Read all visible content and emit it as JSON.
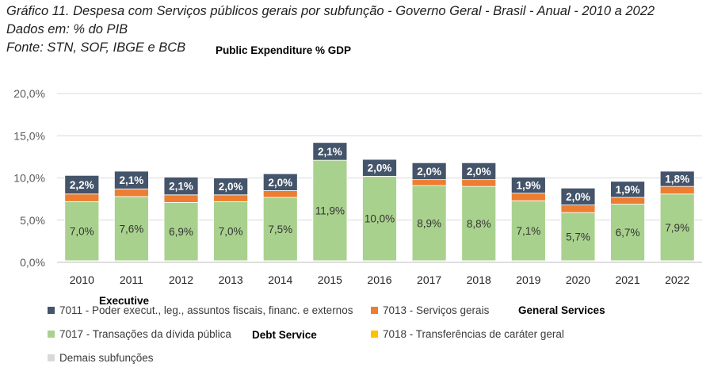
{
  "header": {
    "title": "Gráfico 11. Despesa com Serviços públicos gerais por subfunção - Governo Geral - Brasil - Anual - 2010 a 2022",
    "units": "Dados em: % do PIB",
    "source": "Fonte: STN, SOF, IBGE e BCB",
    "note": "Public Expenditure  % GDP"
  },
  "annotations": {
    "executive": "Executive",
    "general_services": "General Services",
    "debt_service": "Debt Service"
  },
  "chart_data": {
    "type": "bar",
    "stacked": true,
    "title": "Gráfico 11. Despesa com Serviços públicos gerais por subfunção - Governo Geral - Brasil - Anual - 2010 a 2022",
    "ylabel": "% do PIB",
    "ylim": [
      0,
      20
    ],
    "yticks": [
      "0,0%",
      "5,0%",
      "10,0%",
      "15,0%",
      "20,0%"
    ],
    "grid": true,
    "legend_position": "bottom",
    "categories": [
      "2010",
      "2011",
      "2012",
      "2013",
      "2014",
      "2015",
      "2016",
      "2017",
      "2018",
      "2019",
      "2020",
      "2021",
      "2022"
    ],
    "series": [
      {
        "name": "Demais subfunções",
        "color": "#d9d9d9",
        "values": [
          0.1,
          0.1,
          0.1,
          0.1,
          0.1,
          0.1,
          0.1,
          0.1,
          0.1,
          0.1,
          0.1,
          0.1,
          0.1
        ],
        "labels": null
      },
      {
        "name": "7018 - Transferências de caráter geral",
        "color": "#ffc000",
        "values": [
          0.1,
          0.1,
          0.1,
          0.1,
          0.1,
          0.1,
          0.1,
          0.1,
          0.1,
          0.1,
          0.1,
          0.1,
          0.1
        ],
        "labels": null
      },
      {
        "name": "7017 - Transações da dívida pública",
        "color": "#a9d18e",
        "values": [
          7.0,
          7.6,
          6.9,
          7.0,
          7.5,
          11.9,
          10.0,
          8.9,
          8.8,
          7.1,
          5.7,
          6.7,
          7.9
        ],
        "labels": [
          "7,0%",
          "7,6%",
          "6,9%",
          "7,0%",
          "7,5%",
          "11,9%",
          "10,0%",
          "8,9%",
          "8,8%",
          "7,1%",
          "5,7%",
          "6,7%",
          "7,9%"
        ]
      },
      {
        "name": "7013 - Serviços gerais",
        "color": "#ed7d31",
        "values": [
          0.9,
          0.9,
          0.9,
          0.8,
          0.8,
          0.0,
          0.0,
          0.7,
          0.8,
          0.9,
          0.9,
          0.8,
          0.9
        ],
        "labels": null
      },
      {
        "name": "7011 - Poder execut., leg., assuntos fiscais, financ. e externos",
        "color": "#44546a",
        "values": [
          2.2,
          2.1,
          2.1,
          2.0,
          2.0,
          2.1,
          2.0,
          2.0,
          2.0,
          1.9,
          2.0,
          1.9,
          1.8
        ],
        "labels": [
          "2,2%",
          "2,1%",
          "2,1%",
          "2,0%",
          "2,0%",
          "2,1%",
          "2,0%",
          "2,0%",
          "2,0%",
          "1,9%",
          "2,0%",
          "1,9%",
          "1,8%"
        ]
      }
    ]
  }
}
